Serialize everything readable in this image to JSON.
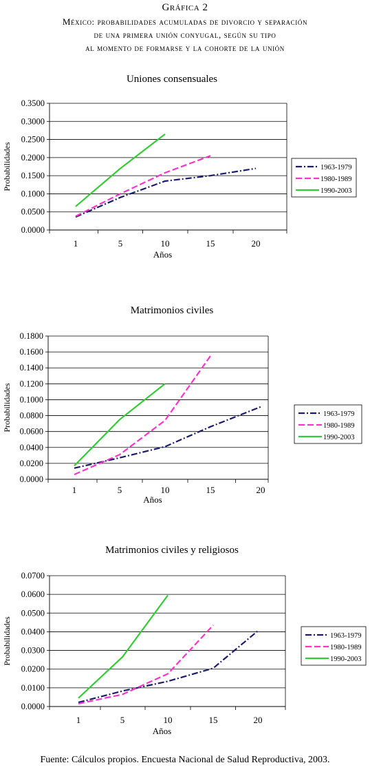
{
  "header": {
    "figure": "Gráfica 2",
    "line1": "México: probabilidades acumuladas de divorcio y separación",
    "line2": "de una primera unión conyugal, según su tipo",
    "line3": "al momento de formarse y la cohorte de la unión"
  },
  "colors": {
    "s1963": "#1a1a6e",
    "s1980": "#ff33cc",
    "s1990": "#33cc33"
  },
  "chart_data": [
    {
      "type": "line",
      "title": "Uniones consensuales",
      "xlabel": "Años",
      "ylabel": "Probabilidades",
      "categories": [
        "1",
        "5",
        "10",
        "15",
        "20"
      ],
      "ytick_labels": [
        "0.0000",
        "0.0500",
        "0.1000",
        "0.1500",
        "0.2000",
        "0.2500",
        "0.3000",
        "0.3500"
      ],
      "ylim": [
        0,
        0.35
      ],
      "grid": true,
      "legend": "right",
      "series": [
        {
          "name": "1963-1979",
          "values": [
            0.036,
            0.09,
            0.135,
            0.15,
            0.17
          ],
          "style": "dash-dot"
        },
        {
          "name": "1980-1989",
          "values": [
            0.038,
            0.1,
            0.158,
            0.205,
            null
          ],
          "style": "dash"
        },
        {
          "name": "1990-2003",
          "values": [
            0.065,
            0.17,
            0.265,
            null,
            null
          ],
          "style": "solid"
        }
      ]
    },
    {
      "type": "line",
      "title": "Matrimonios civiles",
      "xlabel": "Años",
      "ylabel": "Probabilidades",
      "categories": [
        "1",
        "5",
        "10",
        "15",
        "20"
      ],
      "ytick_labels": [
        "0.0000",
        "0.0200",
        "0.0400",
        "0.0600",
        "0.0800",
        "0.1000",
        "0.1200",
        "0.1400",
        "0.1600",
        "0.1800"
      ],
      "ylim": [
        0,
        0.18
      ],
      "grid": true,
      "legend": "right",
      "series": [
        {
          "name": "1963-1979",
          "values": [
            0.014,
            0.027,
            0.041,
            0.066,
            0.091
          ],
          "style": "dash-dot"
        },
        {
          "name": "1980-1989",
          "values": [
            0.006,
            0.031,
            0.074,
            0.155,
            null
          ],
          "style": "dash"
        },
        {
          "name": "1990-2003",
          "values": [
            0.017,
            0.075,
            0.12,
            null,
            null
          ],
          "style": "solid"
        }
      ]
    },
    {
      "type": "line",
      "title": "Matrimonios civiles y religiosos",
      "xlabel": "Años",
      "ylabel": "Probabilidades",
      "categories": [
        "1",
        "5",
        "10",
        "15",
        "20"
      ],
      "ytick_labels": [
        "0.0000",
        "0.0100",
        "0.0200",
        "0.0300",
        "0.0400",
        "0.0500",
        "0.0600",
        "0.0700"
      ],
      "ylim": [
        0,
        0.07
      ],
      "grid": true,
      "legend": "right",
      "series": [
        {
          "name": "1963-1979",
          "values": [
            0.0022,
            0.0083,
            0.0135,
            0.0205,
            0.0405
          ],
          "style": "dash-dot"
        },
        {
          "name": "1980-1989",
          "values": [
            0.0015,
            0.0065,
            0.0175,
            0.0435,
            null
          ],
          "style": "dash"
        },
        {
          "name": "1990-2003",
          "values": [
            0.0045,
            0.0265,
            0.0595,
            null,
            null
          ],
          "style": "solid"
        }
      ]
    }
  ],
  "source": "Fuente: Cálculos propios. Encuesta Nacional de Salud Reproductiva, 2003."
}
